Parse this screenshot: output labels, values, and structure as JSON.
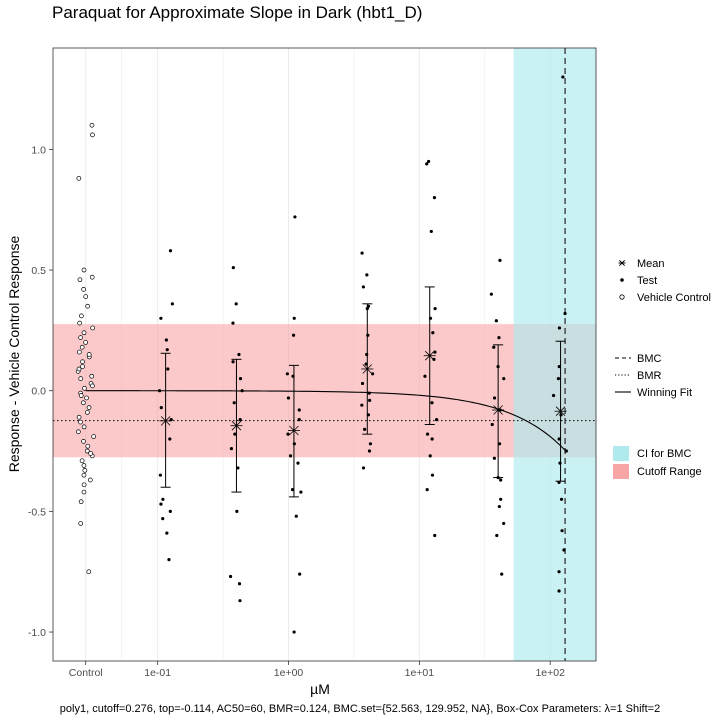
{
  "chart_data": {
    "type": "scatter",
    "title": "Paraquat for Approximate Slope in Dark (hbt1_D)",
    "xlabel": "µM",
    "ylabel": "Response - Vehicle Control Response",
    "x_scale": "log10",
    "x_ticks": [
      {
        "label": "Control",
        "value": "control"
      },
      {
        "label": "1e-01",
        "value": 0.1
      },
      {
        "label": "1e+00",
        "value": 1
      },
      {
        "label": "1e+01",
        "value": 10
      },
      {
        "label": "1e+02",
        "value": 100
      }
    ],
    "control_x_log10": -1.55,
    "xlim_log10": [
      -1.8,
      2.35
    ],
    "ylim": [
      -1.12,
      1.42
    ],
    "y_ticks": [
      -1.0,
      -0.5,
      0.0,
      0.5,
      1.0
    ],
    "y_tick_labels": [
      "-1.0",
      "-0.5",
      "0.0",
      "0.5",
      "1.0"
    ],
    "grid": true,
    "cutoff_range": [
      -0.276,
      0.276
    ],
    "bmr_line": -0.124,
    "bmc": 129.952,
    "ci_for_bmc": [
      52.563,
      129.952
    ],
    "vehicle_control": [
      1.1,
      1.06,
      0.88,
      0.5,
      0.47,
      0.46,
      0.42,
      0.39,
      0.35,
      0.31,
      0.28,
      0.26,
      0.24,
      0.22,
      0.2,
      0.18,
      0.16,
      0.14,
      0.12,
      0.1,
      0.08,
      0.06,
      0.05,
      0.03,
      0.01,
      -0.01,
      -0.03,
      -0.05,
      -0.07,
      -0.09,
      -0.11,
      -0.13,
      -0.15,
      -0.17,
      -0.19,
      -0.21,
      -0.23,
      -0.25,
      -0.27,
      -0.29,
      -0.31,
      -0.33,
      -0.35,
      -0.37,
      -0.39,
      -0.42,
      -0.46,
      -0.55,
      -0.75,
      0.09,
      -0.02,
      0.15,
      -0.26,
      0.02
    ],
    "test_groups": [
      {
        "dose": 0.115,
        "points": [
          0.58,
          0.36,
          0.3,
          0.21,
          0.17,
          0.09,
          0.0,
          -0.07,
          -0.12,
          -0.2,
          -0.35,
          -0.45,
          -0.47,
          -0.5,
          -0.53,
          -0.59,
          -0.7
        ],
        "mean": -0.125,
        "err_low": -0.4,
        "err_high": 0.155
      },
      {
        "dose": 0.4,
        "points": [
          0.51,
          0.36,
          0.28,
          0.15,
          0.12,
          0.05,
          0.0,
          -0.05,
          -0.12,
          -0.18,
          -0.24,
          -0.32,
          -0.5,
          -0.77,
          -0.8,
          -0.87
        ],
        "mean": -0.145,
        "err_low": -0.42,
        "err_high": 0.13
      },
      {
        "dose": 1.1,
        "points": [
          0.72,
          0.3,
          0.23,
          0.07,
          0.06,
          -0.03,
          -0.08,
          -0.12,
          -0.18,
          -0.22,
          -0.27,
          -0.3,
          -0.41,
          -0.42,
          -0.52,
          -0.76,
          -1.0
        ],
        "mean": -0.165,
        "err_low": -0.44,
        "err_high": 0.105
      },
      {
        "dose": 4.0,
        "points": [
          0.57,
          0.48,
          0.43,
          0.35,
          0.34,
          0.23,
          0.15,
          0.11,
          0.07,
          0.03,
          -0.01,
          -0.04,
          -0.06,
          -0.1,
          -0.16,
          -0.22,
          -0.25,
          -0.32
        ],
        "mean": 0.09,
        "err_low": -0.18,
        "err_high": 0.36
      },
      {
        "dose": 12.0,
        "points": [
          0.95,
          0.94,
          0.8,
          0.66,
          0.34,
          0.3,
          0.24,
          0.16,
          0.13,
          0.06,
          -0.05,
          -0.12,
          -0.18,
          -0.2,
          -0.27,
          -0.35,
          -0.41,
          -0.6
        ],
        "mean": 0.145,
        "err_low": -0.14,
        "err_high": 0.43
      },
      {
        "dose": 40.0,
        "points": [
          0.54,
          0.4,
          0.29,
          0.22,
          0.18,
          0.1,
          0.05,
          -0.03,
          -0.08,
          -0.14,
          -0.22,
          -0.28,
          -0.36,
          -0.37,
          -0.45,
          -0.48,
          -0.55,
          -0.6,
          -0.76
        ],
        "mean": -0.08,
        "err_low": -0.36,
        "err_high": 0.19
      },
      {
        "dose": 120.0,
        "points": [
          1.3,
          0.32,
          0.26,
          0.1,
          0.05,
          -0.02,
          -0.1,
          -0.2,
          -0.25,
          -0.3,
          -0.38,
          -0.45,
          -0.58,
          -0.66,
          -0.75,
          -0.83
        ],
        "mean": -0.085,
        "err_low": -0.375,
        "err_high": 0.205
      }
    ],
    "winning_fit": {
      "model": "poly1",
      "top": -0.114,
      "ac50": 60,
      "baseline": 0.0
    },
    "legend": {
      "position": "right",
      "points": [
        {
          "label": "Mean",
          "symbol": "star"
        },
        {
          "label": "Test",
          "symbol": "dot"
        },
        {
          "label": "Vehicle Control",
          "symbol": "open-circle"
        }
      ],
      "lines": [
        {
          "label": "BMC",
          "style": "dashed"
        },
        {
          "label": "BMR",
          "style": "dotted"
        },
        {
          "label": "Winning Fit",
          "style": "solid"
        }
      ],
      "fills": [
        {
          "label": "CI for BMC",
          "color": "#aeeaee"
        },
        {
          "label": "Cutoff Range",
          "color": "#f8a5a5"
        }
      ]
    },
    "footer": "poly1, cutoff=0.276, top=-0.114, AC50=60, BMR=0.124, BMC.set={52.563, 129.952, NA}, Box-Cox Parameters: λ=1 Shift=2",
    "colors": {
      "ci_fill": "#aeeaee",
      "cutoff_fill": "#f8a5a5",
      "panel_bg": "#ffffff",
      "grid": "#ebebeb",
      "points": "#000000"
    }
  }
}
